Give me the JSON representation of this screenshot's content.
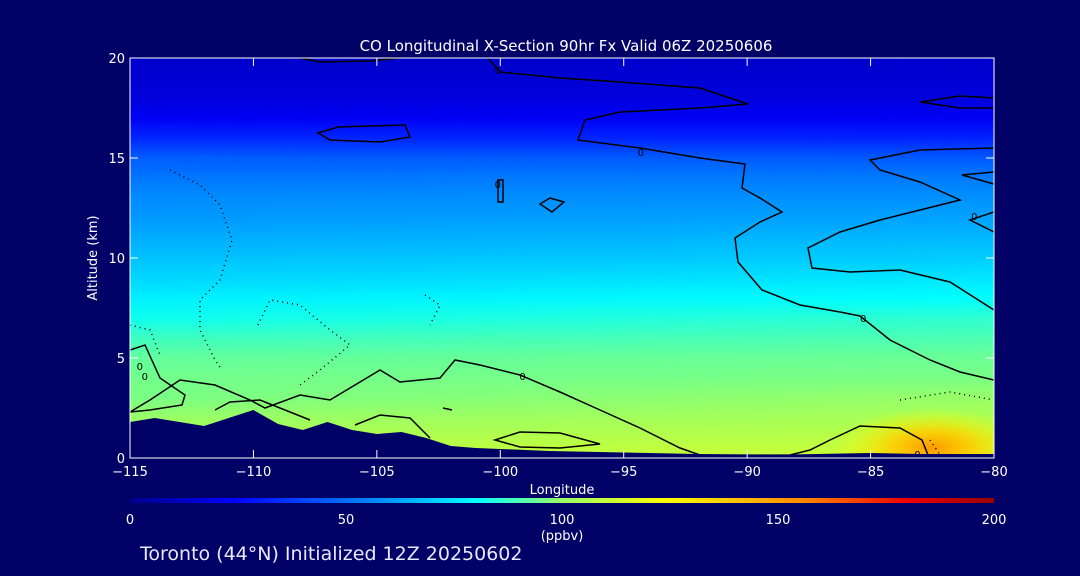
{
  "chart_data": {
    "type": "heatmap",
    "title": "CO Longitudinal X-Section 90hr  Fx Valid 06Z 20250606",
    "xlabel": "Longitude",
    "ylabel": "Altitude (km)",
    "xlim": [
      -115,
      -80
    ],
    "ylim": [
      0,
      20
    ],
    "x_ticks": [
      -115,
      -110,
      -105,
      -100,
      -95,
      -90,
      -85,
      -80
    ],
    "y_ticks": [
      0,
      5,
      10,
      15,
      20
    ],
    "colorbar": {
      "label": "(ppbv)",
      "min": 0,
      "max": 200,
      "ticks": [
        0,
        50,
        100,
        150,
        200
      ]
    },
    "altitude_levels_km": [
      0,
      1,
      2,
      3,
      4,
      5,
      6,
      7,
      8,
      9,
      10,
      11,
      12,
      13,
      14,
      15,
      16,
      17,
      18,
      19,
      20
    ],
    "co_profile_west_ppbv": [
      110,
      105,
      100,
      96,
      95,
      93,
      88,
      82,
      77,
      72,
      68,
      64,
      60,
      57,
      52,
      46,
      33,
      22,
      17,
      15,
      14
    ],
    "co_profile_east_ppbv": [
      112,
      108,
      104,
      100,
      96,
      94,
      90,
      86,
      80,
      75,
      70,
      66,
      62,
      58,
      53,
      45,
      32,
      22,
      17,
      15,
      14
    ],
    "surface_max": {
      "longitude": -82.5,
      "altitude_km": 0.5,
      "value": 175
    },
    "terrain_km": {
      "longitude": [
        -115,
        -114,
        -113,
        -112,
        -111,
        -110,
        -109,
        -108,
        -107,
        -106,
        -105,
        -104,
        -103,
        -102,
        -101,
        -100,
        -98,
        -96,
        -94,
        -92,
        -90,
        -88,
        -85,
        -83,
        -80
      ],
      "height": [
        1.8,
        2.0,
        1.8,
        1.6,
        2.0,
        2.4,
        1.7,
        1.4,
        1.8,
        1.4,
        1.2,
        1.3,
        1.0,
        0.6,
        0.5,
        0.45,
        0.35,
        0.3,
        0.25,
        0.2,
        0.18,
        0.18,
        0.25,
        0.2,
        0.2
      ]
    },
    "contour_labels": [
      {
        "text": "0",
        "longitude": -100.1,
        "altitude_km": 19.4
      },
      {
        "text": "0",
        "longitude": -94.3,
        "altitude_km": 15.3
      },
      {
        "text": "0",
        "longitude": -100.1,
        "altitude_km": 13.7
      },
      {
        "text": "0",
        "longitude": -80.8,
        "altitude_km": 12.1
      },
      {
        "text": "0",
        "longitude": -85.3,
        "altitude_km": 7.0
      },
      {
        "text": "0",
        "longitude": -114.6,
        "altitude_km": 4.6
      },
      {
        "text": "0",
        "longitude": -114.4,
        "altitude_km": 4.1
      },
      {
        "text": "0",
        "longitude": -99.1,
        "altitude_km": 4.1
      },
      {
        "text": "0",
        "longitude": -83.1,
        "altitude_km": 0.2
      }
    ]
  },
  "footer": "Toronto (44°N) Initialized 12Z 20250602",
  "colors": {
    "background": "#000066",
    "text": "#ffffff",
    "contour": "#000000",
    "terrain": "#000066"
  }
}
